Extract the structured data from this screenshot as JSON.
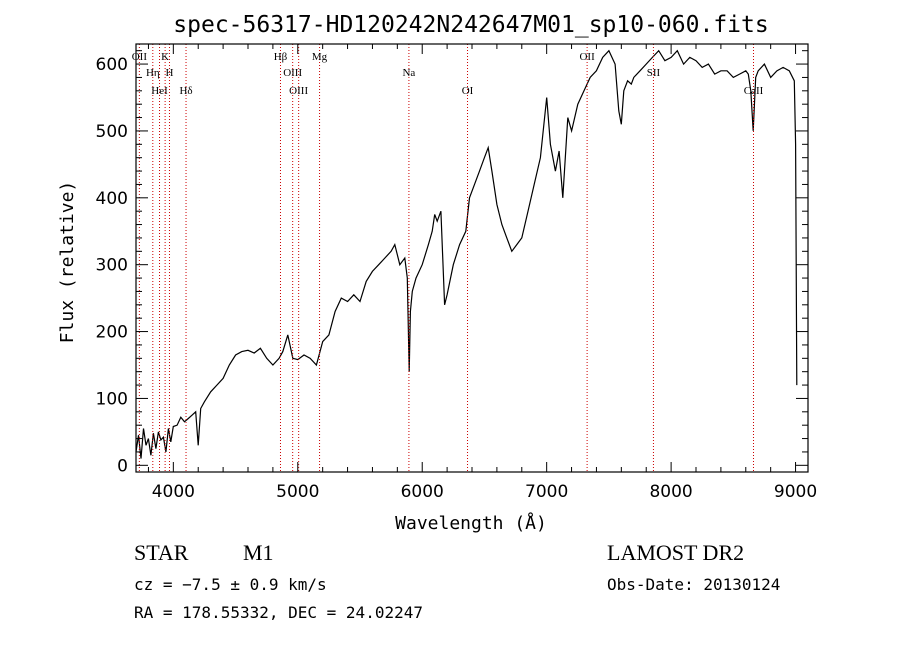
{
  "chart_data": {
    "type": "line",
    "title": "spec-56317-HD120242N242647M01_sp10-060.fits",
    "xlabel": "Wavelength (Å)",
    "ylabel": "Flux (relative)",
    "xlim": [
      3700,
      9100
    ],
    "ylim": [
      -10,
      630
    ],
    "x_ticks": [
      4000,
      5000,
      6000,
      7000,
      8000,
      9000
    ],
    "y_ticks": [
      0,
      100,
      200,
      300,
      400,
      500,
      600
    ],
    "grid": false,
    "line_color": "#000000",
    "marker_color": "#cc0000",
    "spectrum": {
      "x": [
        3700,
        3720,
        3740,
        3760,
        3780,
        3800,
        3820,
        3840,
        3860,
        3880,
        3900,
        3920,
        3940,
        3960,
        3980,
        4000,
        4030,
        4060,
        4090,
        4120,
        4150,
        4180,
        4200,
        4220,
        4250,
        4300,
        4350,
        4400,
        4450,
        4500,
        4550,
        4600,
        4650,
        4700,
        4750,
        4800,
        4850,
        4880,
        4920,
        4960,
        5000,
        5050,
        5100,
        5150,
        5200,
        5250,
        5300,
        5350,
        5400,
        5450,
        5500,
        5550,
        5600,
        5650,
        5700,
        5750,
        5780,
        5820,
        5860,
        5880,
        5895,
        5905,
        5920,
        5950,
        6000,
        6050,
        6080,
        6100,
        6120,
        6150,
        6180,
        6200,
        6250,
        6300,
        6350,
        6380,
        6420,
        6460,
        6500,
        6530,
        6560,
        6600,
        6640,
        6680,
        6720,
        6760,
        6800,
        6850,
        6900,
        6950,
        7000,
        7030,
        7070,
        7100,
        7130,
        7170,
        7200,
        7250,
        7300,
        7350,
        7400,
        7450,
        7500,
        7550,
        7580,
        7600,
        7620,
        7650,
        7680,
        7700,
        7750,
        7800,
        7850,
        7900,
        7950,
        8000,
        8050,
        8100,
        8150,
        8200,
        8250,
        8300,
        8350,
        8400,
        8450,
        8500,
        8550,
        8600,
        8620,
        8640,
        8660,
        8680,
        8700,
        8750,
        8800,
        8850,
        8900,
        8950,
        8990,
        9000,
        9010
      ],
      "y": [
        20,
        45,
        10,
        55,
        30,
        40,
        15,
        48,
        25,
        50,
        38,
        42,
        20,
        55,
        35,
        58,
        60,
        72,
        65,
        70,
        75,
        80,
        30,
        85,
        95,
        110,
        120,
        130,
        150,
        165,
        170,
        172,
        168,
        175,
        160,
        150,
        160,
        170,
        195,
        160,
        158,
        165,
        160,
        150,
        185,
        195,
        230,
        250,
        245,
        255,
        245,
        275,
        290,
        300,
        310,
        320,
        330,
        300,
        310,
        280,
        140,
        230,
        260,
        280,
        300,
        330,
        350,
        375,
        365,
        380,
        240,
        255,
        300,
        330,
        350,
        400,
        420,
        440,
        460,
        475,
        440,
        390,
        360,
        340,
        320,
        330,
        340,
        380,
        420,
        460,
        550,
        480,
        440,
        470,
        400,
        520,
        500,
        540,
        560,
        580,
        590,
        610,
        620,
        600,
        530,
        510,
        560,
        575,
        570,
        580,
        590,
        600,
        610,
        620,
        605,
        610,
        620,
        600,
        610,
        605,
        595,
        600,
        585,
        590,
        590,
        580,
        585,
        590,
        585,
        560,
        500,
        580,
        590,
        600,
        580,
        590,
        595,
        590,
        575,
        480,
        120
      ]
    },
    "line_markers": [
      {
        "label": "OII",
        "x": 3727
      },
      {
        "label": "Hη",
        "x": 3835
      },
      {
        "label": "HeI",
        "x": 3889
      },
      {
        "label": "K",
        "x": 3934
      },
      {
        "label": "H",
        "x": 3969
      },
      {
        "label": "Hδ",
        "x": 4102
      },
      {
        "label": "Hβ",
        "x": 4861
      },
      {
        "label": "OIII",
        "x": 4959
      },
      {
        "label": "OIII",
        "x": 5007
      },
      {
        "label": "Mg",
        "x": 5175
      },
      {
        "label": "Na",
        "x": 5893
      },
      {
        "label": "OI",
        "x": 6364
      },
      {
        "label": "OII",
        "x": 7325
      },
      {
        "label": "SII",
        "x": 7858
      },
      {
        "label": "CaII",
        "x": 8662
      }
    ]
  },
  "info": {
    "object_type": "STAR",
    "subclass": "M1",
    "survey": "LAMOST DR2",
    "redshift": "cz = −7.5 ± 0.9 km/s",
    "obs_date": "Obs-Date: 20130124",
    "coords": "RA = 178.55332, DEC =  24.02247"
  }
}
